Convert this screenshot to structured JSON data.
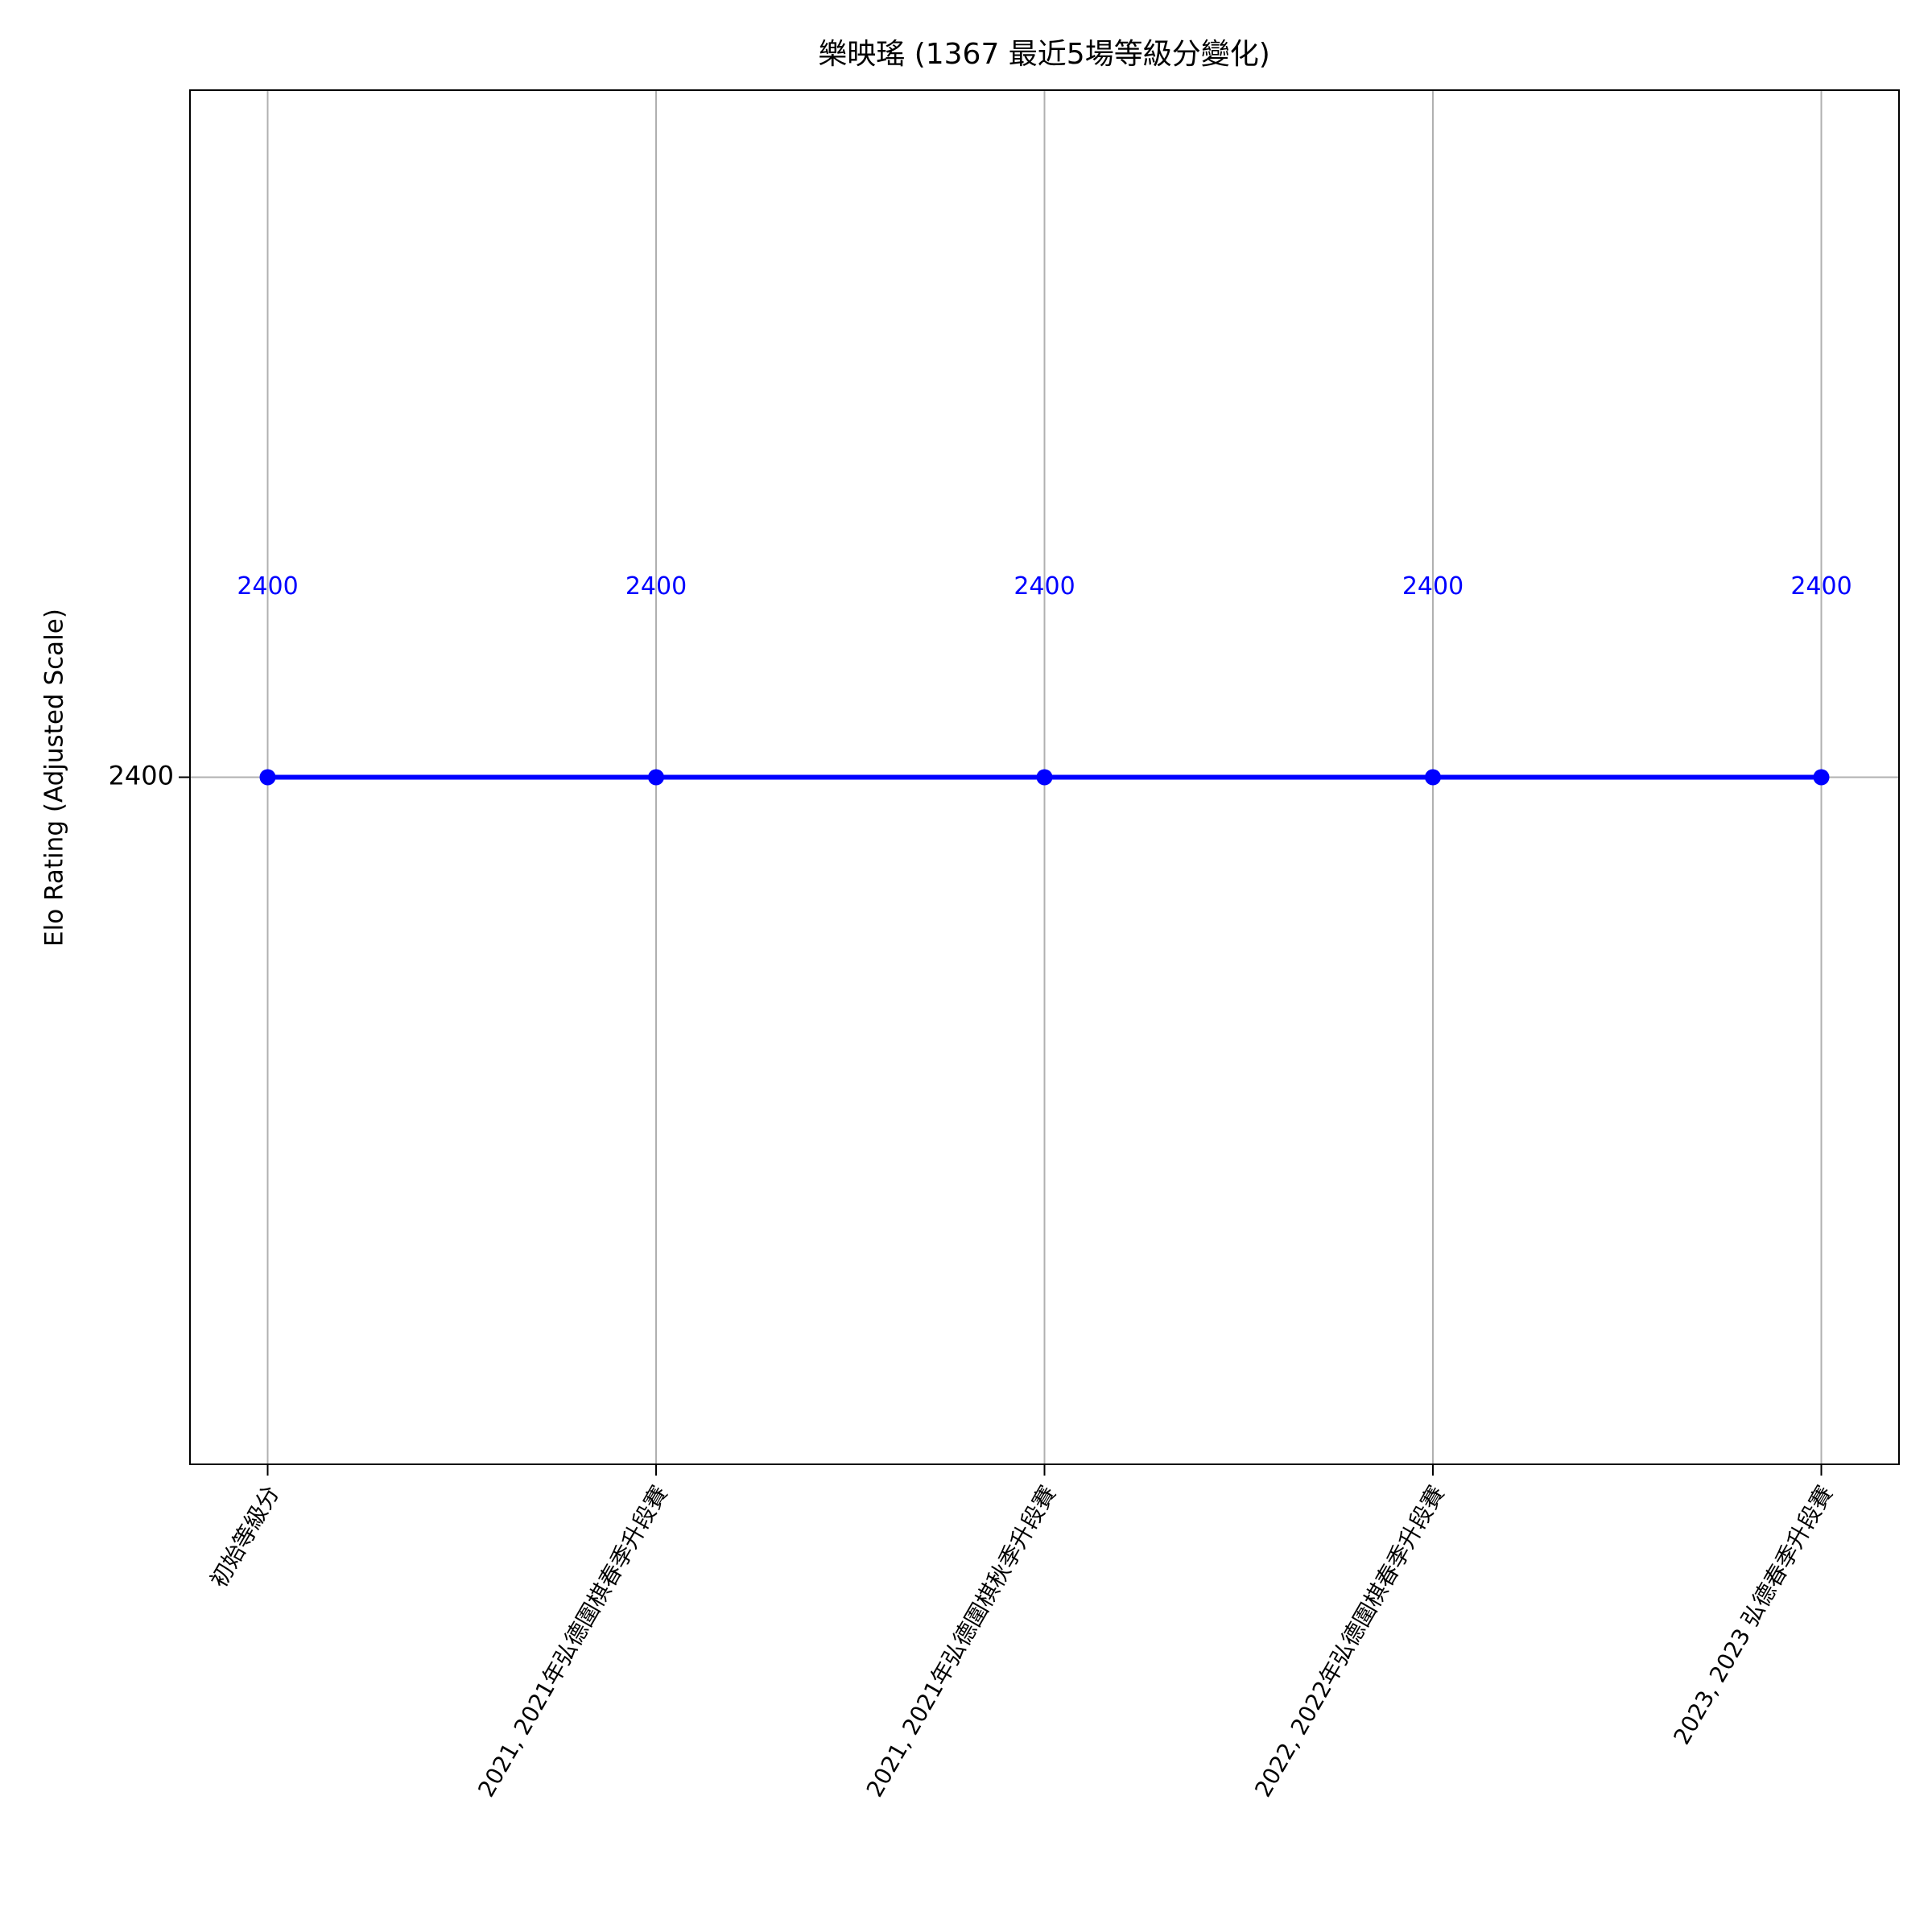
{
  "chart_data": {
    "type": "line",
    "title": "樂映瑤 (1367 最近5場等級分變化)",
    "y_label": "Elo Rating (Adjusted Scale)",
    "categories": [
      "初始等級分",
      "2021, 2021年弘德圍棋春季升段賽",
      "2021, 2021年弘德圍棋秋季升段賽",
      "2022, 2022年弘德圍棋春季升段賽",
      "2023, 2023 弘德春季升段賽"
    ],
    "series": [
      {
        "name": "Elo",
        "color": "#0000ff",
        "values": [
          2400,
          2400,
          2400,
          2400,
          2400
        ]
      }
    ],
    "ylim": [
      2300,
      2500
    ],
    "yticks": [
      2400
    ],
    "grid": true
  }
}
